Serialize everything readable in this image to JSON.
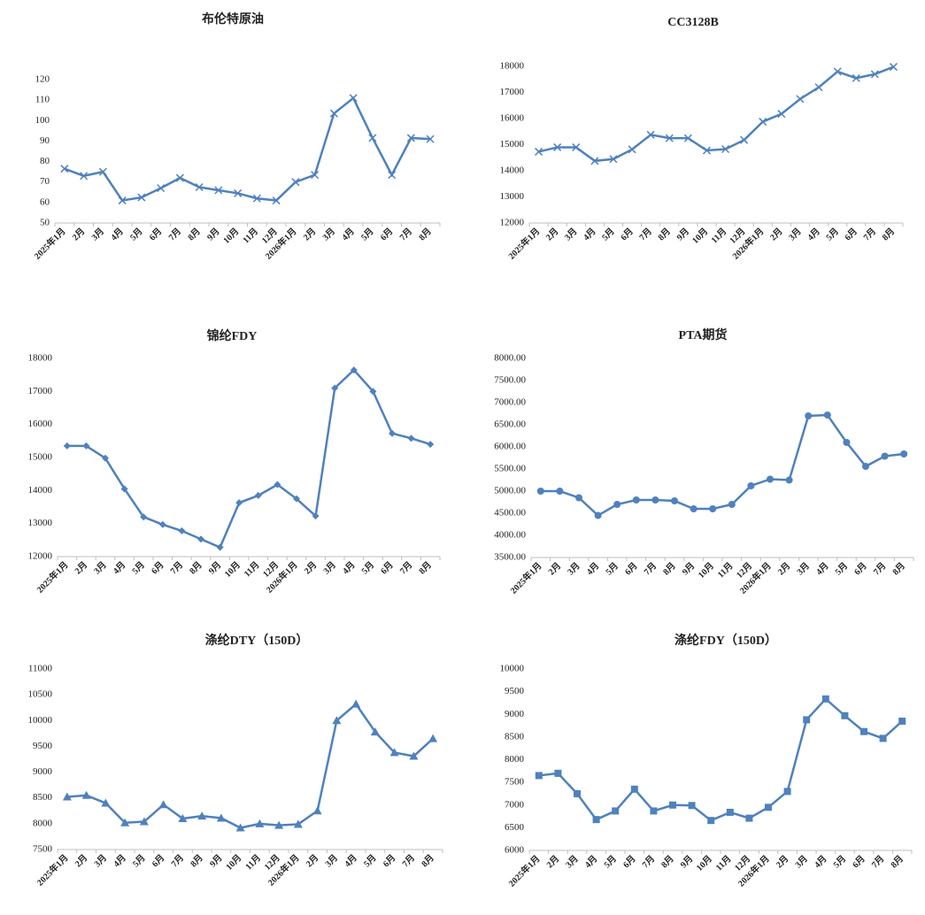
{
  "chart_data": [
    {
      "type": "line",
      "title": "布伦特原油",
      "marker": "x",
      "color": "#4f81bd",
      "categories": [
        "2025年1月",
        "2月",
        "3月",
        "4月",
        "5月",
        "6月",
        "7月",
        "8月",
        "9月",
        "10月",
        "11月",
        "12月",
        "2026年1月",
        "2月",
        "3月",
        "4月",
        "5月",
        "6月",
        "7月",
        "8月"
      ],
      "values": [
        76.5,
        73,
        75,
        61,
        62.5,
        67,
        72,
        67.5,
        66,
        64.5,
        62,
        61,
        70,
        73.5,
        103.5,
        111,
        91.5,
        73.5,
        91.5,
        91
      ],
      "ylim": [
        50,
        120
      ],
      "yticks": [
        50,
        60,
        70,
        80,
        90,
        100,
        110,
        120
      ]
    },
    {
      "type": "line",
      "title": "CC3128B",
      "marker": "x",
      "color": "#4f81bd",
      "categories": [
        "2025年1月",
        "2月",
        "3月",
        "4月",
        "5月",
        "6月",
        "7月",
        "8月",
        "9月",
        "10月",
        "11月",
        "12月",
        "2026年1月",
        "2月",
        "3月",
        "4月",
        "5月",
        "6月",
        "7月",
        "8月"
      ],
      "values": [
        14730,
        14900,
        14900,
        14380,
        14450,
        14820,
        15380,
        15250,
        15250,
        14780,
        14830,
        15180,
        15880,
        16180,
        16750,
        17200,
        17800,
        17550,
        17700,
        17980
      ],
      "ylim": [
        12000,
        18000
      ],
      "yticks": [
        12000,
        13000,
        14000,
        15000,
        16000,
        17000,
        18000
      ]
    },
    {
      "type": "line",
      "title": "锦纶FDY",
      "marker": "diamond",
      "color": "#4f81bd",
      "categories": [
        "2025年1月",
        "2月",
        "3月",
        "4月",
        "5月",
        "6月",
        "7月",
        "8月",
        "9月",
        "10月",
        "11月",
        "12月",
        "2026年1月",
        "2月",
        "3月",
        "4月",
        "5月",
        "6月",
        "7月",
        "8月"
      ],
      "values": [
        15350,
        15350,
        14980,
        14050,
        13200,
        12970,
        12780,
        12530,
        12280,
        13630,
        13850,
        14180,
        13750,
        13230,
        17100,
        17650,
        17000,
        15730,
        15580,
        15400
      ],
      "ylim": [
        12000,
        18000
      ],
      "yticks": [
        12000,
        13000,
        14000,
        15000,
        16000,
        17000,
        18000
      ]
    },
    {
      "type": "line",
      "title": "PTA期货",
      "marker": "circle",
      "color": "#4f81bd",
      "categories": [
        "2025年1月",
        "2月",
        "3月",
        "4月",
        "5月",
        "6月",
        "7月",
        "8月",
        "9月",
        "10月",
        "11月",
        "12月",
        "2026年1月",
        "2月",
        "3月",
        "4月",
        "5月",
        "6月",
        "7月",
        "8月"
      ],
      "values": [
        5000,
        5000,
        4850,
        4450,
        4700,
        4800,
        4800,
        4780,
        4600,
        4600,
        4700,
        5120,
        5270,
        5250,
        6700,
        6720,
        6100,
        5560,
        5790,
        5840
      ],
      "ylim": [
        3500,
        8000
      ],
      "yticks": [
        {
          "value": 3500,
          "label": "3500.00"
        },
        {
          "value": 4000,
          "label": "4000.00"
        },
        {
          "value": 4500,
          "label": "4500.00"
        },
        {
          "value": 5000,
          "label": "5000.00"
        },
        {
          "value": 5500,
          "label": "5500.00"
        },
        {
          "value": 6000,
          "label": "6000.00"
        },
        {
          "value": 6500,
          "label": "6500.00"
        },
        {
          "value": 7000,
          "label": "7000.00"
        },
        {
          "value": 7500,
          "label": "7500.00"
        },
        {
          "value": 8000,
          "label": "8000.00"
        }
      ]
    },
    {
      "type": "line",
      "title": "涤纶DTY（150D）",
      "marker": "triangle",
      "color": "#4f81bd",
      "categories": [
        "2025年1月",
        "2月",
        "3月",
        "4月",
        "5月",
        "6月",
        "7月",
        "8月",
        "9月",
        "10月",
        "11月",
        "12月",
        "2026年1月",
        "2月",
        "3月",
        "4月",
        "5月",
        "6月",
        "7月",
        "8月"
      ],
      "values": [
        8520,
        8550,
        8400,
        8020,
        8040,
        8370,
        8100,
        8150,
        8110,
        7920,
        8000,
        7970,
        7990,
        8250,
        10000,
        10320,
        9780,
        9380,
        9310,
        9650
      ],
      "ylim": [
        7500,
        11000
      ],
      "yticks": [
        7500,
        8000,
        8500,
        9000,
        9500,
        10000,
        10500,
        11000
      ]
    },
    {
      "type": "line",
      "title": "涤纶FDY（150D）",
      "marker": "square",
      "color": "#4f81bd",
      "categories": [
        "2025年1月",
        "2月",
        "3月",
        "4月",
        "5月",
        "6月",
        "7月",
        "8月",
        "9月",
        "10月",
        "11月",
        "12月",
        "2026年1月",
        "2月",
        "3月",
        "4月",
        "5月",
        "6月",
        "7月",
        "8月"
      ],
      "values": [
        7650,
        7700,
        7250,
        6680,
        6870,
        7350,
        6870,
        7000,
        6990,
        6660,
        6840,
        6710,
        6950,
        7300,
        8880,
        9340,
        8970,
        8620,
        8470,
        8850
      ],
      "ylim": [
        6000,
        10000
      ],
      "yticks": [
        6000,
        6500,
        7000,
        7500,
        8000,
        8500,
        9000,
        9500,
        10000
      ]
    }
  ]
}
